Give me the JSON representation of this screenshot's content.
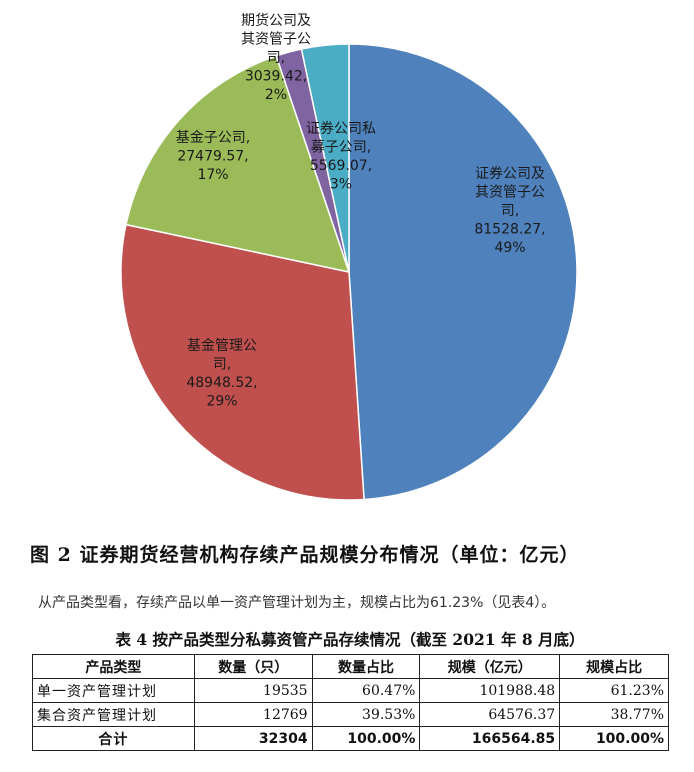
{
  "chart_data": {
    "type": "pie",
    "slices": [
      {
        "label": "证券公司及其资管子公司",
        "value": 81528.27,
        "percent": "49%",
        "value_text": "81528.27,",
        "label_lines": [
          "证券公司及",
          "其资管子公",
          "司,"
        ],
        "color": "#4f81bd"
      },
      {
        "label": "基金管理公司",
        "value": 48948.52,
        "percent": "29%",
        "value_text": "48948.52,",
        "label_lines": [
          "基金管理公",
          "司,"
        ],
        "color": "#c0504d"
      },
      {
        "label": "基金子公司",
        "value": 27479.57,
        "percent": "17%",
        "value_text": "27479.57,",
        "label_lines": [
          "基金子公司,"
        ],
        "color": "#9bbb59"
      },
      {
        "label": "期货公司及其资管子公司",
        "value": 3039.42,
        "percent": "2%",
        "value_text": "3039.42,",
        "label_lines": [
          "期货公司及",
          "其资管子公",
          "司,"
        ],
        "color": "#8064a2"
      },
      {
        "label": "证券公司私募子公司",
        "value": 5569.07,
        "percent": "3%",
        "value_text": "5569.07,",
        "label_lines": [
          "证券公司私",
          "募子公司,"
        ],
        "color": "#4bacc6"
      }
    ]
  },
  "figure_caption": "图 2   证券期货经营机构存续产品规模分布情况（单位：亿元）",
  "paragraph": "从产品类型看，存续产品以单一资产管理计划为主，规模占比为61.23%（见表4）。",
  "table": {
    "title": "表 4   按产品类型分私募资管产品存续情况（截至 2021 年 8 月底）",
    "headers": [
      "产品类型",
      "数量（只）",
      "数量占比",
      "规模（亿元）",
      "规模占比"
    ],
    "rows": [
      [
        "单一资产管理计划",
        "19535",
        "60.47%",
        "101988.48",
        "61.23%"
      ],
      [
        "集合资产管理计划",
        "12769",
        "39.53%",
        "64576.37",
        "38.77%"
      ]
    ],
    "total": [
      "合计",
      "32304",
      "100.00%",
      "166564.85",
      "100.00%"
    ]
  }
}
